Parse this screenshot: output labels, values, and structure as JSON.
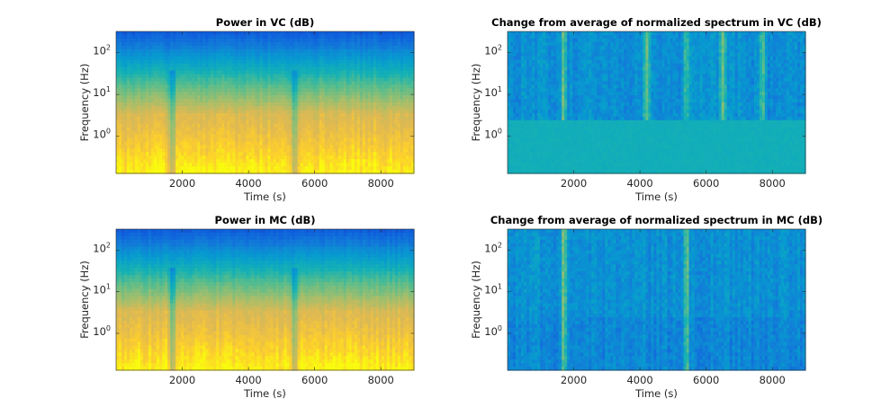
{
  "chart_data": [
    {
      "type": "heatmap",
      "title": "Power in VC (dB)",
      "xlabel": "Time (s)",
      "ylabel": "Frequency (Hz)",
      "xlim": [
        0,
        9000
      ],
      "ylim": [
        0.13,
        320
      ],
      "yscale": "log",
      "xticks": [
        2000,
        4000,
        6000,
        8000
      ],
      "yticks": [
        {
          "base": "10",
          "exp": "2"
        },
        {
          "base": "10",
          "exp": "1"
        },
        {
          "base": "10",
          "exp": "0"
        }
      ],
      "colormap": "parula",
      "color_trend_by_frequency": "blue at 100-320 Hz, green near 10-30 Hz, orange to yellow below 3 Hz",
      "visible_artifacts_time_s": [
        1700,
        5400
      ]
    },
    {
      "type": "heatmap",
      "title": "Change from average of normalized spectrum in VC (dB)",
      "xlabel": "Time (s)",
      "ylabel": "Frequency (Hz)",
      "xlim": [
        0,
        9000
      ],
      "ylim": [
        0.13,
        320
      ],
      "yscale": "log",
      "xticks": [
        2000,
        4000,
        6000,
        8000
      ],
      "yticks": [
        {
          "base": "10",
          "exp": "2"
        },
        {
          "base": "10",
          "exp": "1"
        },
        {
          "base": "10",
          "exp": "0"
        }
      ],
      "colormap": "parula",
      "color_trend_by_frequency": "mostly blue-teal noise above 2.5 Hz, uniform cyan below 2.5 Hz",
      "visible_artifacts_time_s": [
        1700,
        4200,
        5400,
        6500,
        7700
      ]
    },
    {
      "type": "heatmap",
      "title": "Power in MC (dB)",
      "xlabel": "Time (s)",
      "ylabel": "Frequency (Hz)",
      "xlim": [
        0,
        9000
      ],
      "ylim": [
        0.13,
        320
      ],
      "yscale": "log",
      "xticks": [
        2000,
        4000,
        6000,
        8000
      ],
      "yticks": [
        {
          "base": "10",
          "exp": "2"
        },
        {
          "base": "10",
          "exp": "1"
        },
        {
          "base": "10",
          "exp": "0"
        }
      ],
      "colormap": "parula",
      "color_trend_by_frequency": "blue at 100-320 Hz, green near 10-30 Hz, orange to yellow below 3 Hz",
      "visible_artifacts_time_s": [
        1700,
        5400
      ]
    },
    {
      "type": "heatmap",
      "title": "Change from average of normalized spectrum in MC (dB)",
      "xlabel": "Time (s)",
      "ylabel": "Frequency (Hz)",
      "xlim": [
        0,
        9000
      ],
      "ylim": [
        0.13,
        320
      ],
      "yscale": "log",
      "xticks": [
        2000,
        4000,
        6000,
        8000
      ],
      "yticks": [
        {
          "base": "10",
          "exp": "2"
        },
        {
          "base": "10",
          "exp": "1"
        },
        {
          "base": "10",
          "exp": "0"
        }
      ],
      "colormap": "parula",
      "color_trend_by_frequency": "blue-teal noise across all frequencies",
      "visible_artifacts_time_s": [
        1700,
        5400
      ]
    }
  ]
}
